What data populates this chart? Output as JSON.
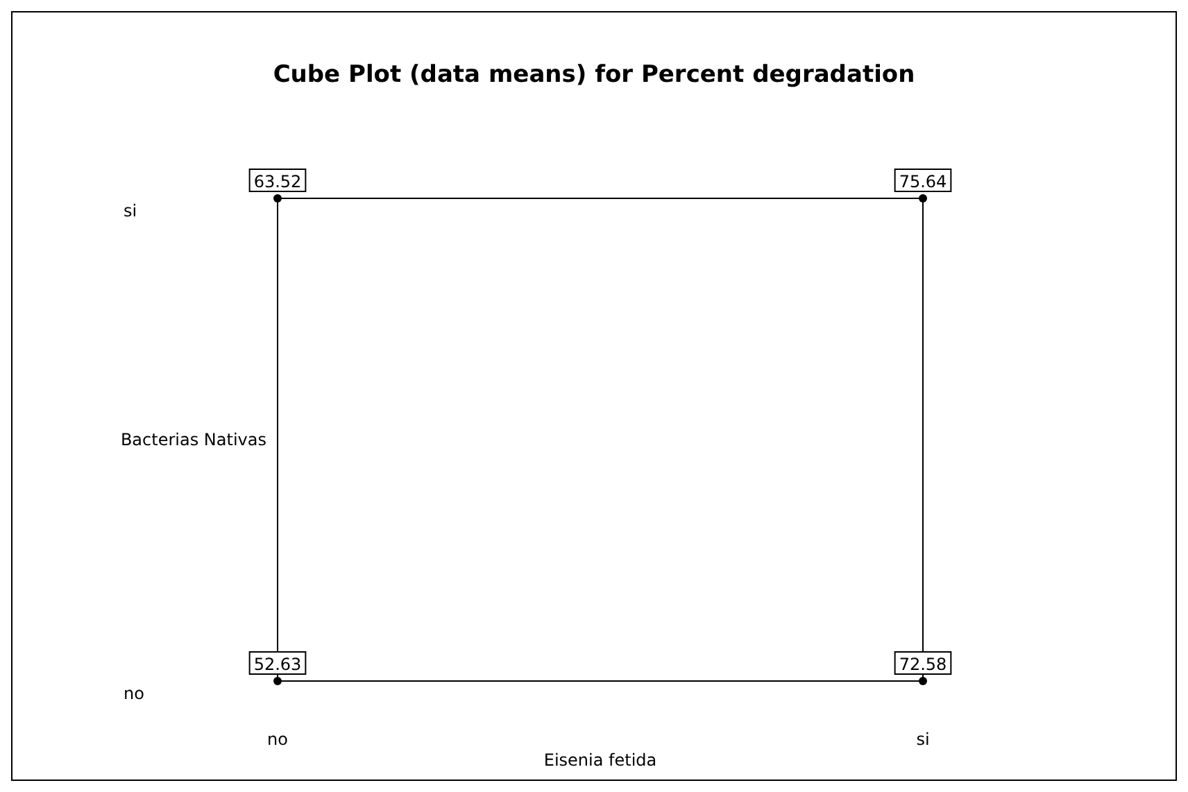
{
  "chart_data": {
    "type": "heatmap",
    "title": "Cube Plot (data means) for Percent degradation",
    "xlabel": "Eisenia fetida",
    "ylabel": "Bacterias Nativas",
    "categories": [
      "no",
      "si"
    ],
    "y_categories": [
      "si",
      "no"
    ],
    "data_labels": true,
    "cells": [
      [
        63.52,
        75.64
      ],
      [
        52.63,
        72.58
      ]
    ]
  }
}
